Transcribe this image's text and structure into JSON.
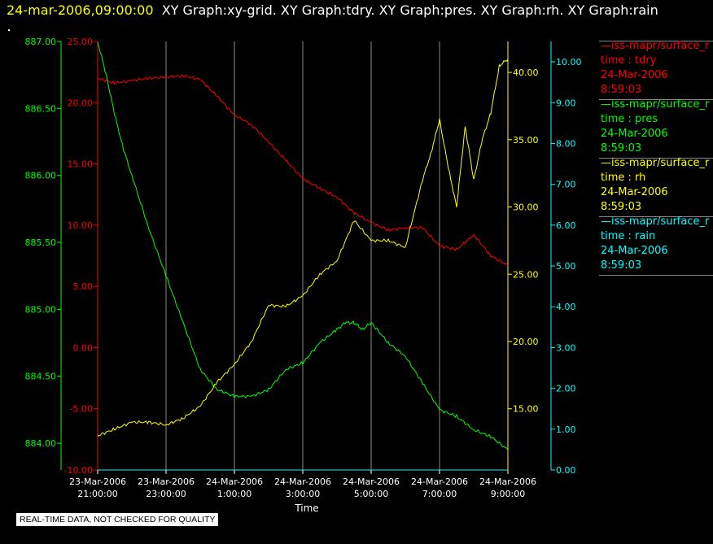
{
  "header": {
    "timestamp": "24-mar-2006,09:00:00",
    "graph_titles": "XY Graph:xy-grid.  XY Graph:tdry.  XY Graph:pres.  XY Graph:rh.  XY Graph:rain"
  },
  "footer": {
    "disclaimer": "REAL-TIME DATA, NOT CHECKED FOR QUALITY"
  },
  "legend": [
    {
      "name": "—iss-mapr/surface_r",
      "var": "time : tdry",
      "date": "24-Mar-2006",
      "time": "8:59:03",
      "color": "#ff0000"
    },
    {
      "name": "—iss-mapr/surface_r",
      "var": "time : pres",
      "date": "24-Mar-2006",
      "time": "8:59:03",
      "color": "#00ff00"
    },
    {
      "name": "—iss-mapr/surface_r",
      "var": "time : rh",
      "date": "24-Mar-2006",
      "time": "8:59:03",
      "color": "#ffff00"
    },
    {
      "name": "—iss-mapr/surface_r",
      "var": "time : rain",
      "date": "24-Mar-2006",
      "time": "8:59:03",
      "color": "#00ffff"
    }
  ],
  "chart_data": {
    "type": "line",
    "xlabel": "Time",
    "x_ticks": [
      {
        "line1": "23-Mar-2006",
        "line2": "21:00:00"
      },
      {
        "line1": "23-Mar-2006",
        "line2": "23:00:00"
      },
      {
        "line1": "24-Mar-2006",
        "line2": "1:00:00"
      },
      {
        "line1": "24-Mar-2006",
        "line2": "3:00:00"
      },
      {
        "line1": "24-Mar-2006",
        "line2": "5:00:00"
      },
      {
        "line1": "24-Mar-2006",
        "line2": "7:00:00"
      },
      {
        "line1": "24-Mar-2006",
        "line2": "9:00:00"
      }
    ],
    "xlim_hours": [
      21,
      33
    ],
    "grid": "vertical",
    "axes": {
      "pres": {
        "color": "#00ff00",
        "ylim": [
          883.8,
          887.0
        ],
        "ticks": [
          "887.00",
          "886.50",
          "886.00",
          "885.50",
          "885.00",
          "884.50",
          "884.00"
        ],
        "tick_values": [
          887.0,
          886.5,
          886.0,
          885.5,
          885.0,
          884.5,
          884.0
        ]
      },
      "tdry": {
        "color": "#ff0000",
        "ylim": [
          -10.0,
          25.0
        ],
        "ticks": [
          "25.00",
          "20.00",
          "15.00",
          "10.00",
          "5.00",
          "0.00",
          "-5.00",
          "-10.00"
        ],
        "tick_values": [
          25,
          20,
          15,
          10,
          5,
          0,
          -5,
          -10
        ]
      },
      "rh": {
        "color": "#ffff00",
        "ylim": [
          10.45,
          42.3
        ],
        "ticks": [
          "40.00",
          "35.00",
          "30.00",
          "25.00",
          "20.00",
          "15.00"
        ],
        "tick_values": [
          40,
          35,
          30,
          25,
          20,
          15
        ]
      },
      "rain": {
        "color": "#00ffff",
        "ylim": [
          0.0,
          10.5
        ],
        "ticks": [
          "10.00",
          "9.00",
          "8.00",
          "7.00",
          "6.00",
          "5.00",
          "4.00",
          "3.00",
          "2.00",
          "1.00",
          "0.00"
        ],
        "tick_values": [
          10,
          9,
          8,
          7,
          6,
          5,
          4,
          3,
          2,
          1,
          0
        ]
      }
    },
    "series": [
      {
        "name": "tdry",
        "axis": "tdry",
        "color": "#ff0000",
        "x": [
          21.0,
          21.5,
          22.0,
          22.5,
          23.0,
          23.5,
          24.0,
          24.5,
          25.0,
          25.5,
          26.0,
          26.5,
          27.0,
          27.5,
          28.0,
          28.5,
          29.0,
          29.5,
          30.0,
          30.5,
          31.0,
          31.5,
          32.0,
          32.5,
          33.0
        ],
        "y": [
          22.0,
          21.6,
          21.8,
          22.0,
          22.1,
          22.2,
          21.9,
          20.5,
          19.0,
          18.2,
          16.8,
          15.3,
          13.8,
          13.0,
          12.3,
          11.0,
          10.2,
          9.6,
          9.8,
          9.8,
          8.3,
          8.0,
          9.2,
          7.5,
          6.7
        ]
      },
      {
        "name": "pres",
        "axis": "pres",
        "color": "#00ff00",
        "x": [
          21.0,
          21.25,
          21.5,
          21.75,
          22.0,
          22.5,
          23.0,
          23.5,
          24.0,
          24.5,
          25.0,
          25.5,
          26.0,
          26.5,
          27.0,
          27.5,
          28.0,
          28.25,
          28.5,
          28.75,
          29.0,
          29.5,
          30.0,
          30.5,
          31.0,
          31.5,
          32.0,
          32.5,
          33.0
        ],
        "y": [
          887.0,
          886.75,
          886.45,
          886.2,
          886.0,
          885.6,
          885.25,
          884.9,
          884.55,
          884.4,
          884.35,
          884.35,
          884.4,
          884.55,
          884.6,
          884.75,
          884.85,
          884.9,
          884.9,
          884.85,
          884.9,
          884.75,
          884.65,
          884.45,
          884.25,
          884.2,
          884.1,
          884.05,
          883.95
        ]
      },
      {
        "name": "rh",
        "axis": "rh",
        "color": "#ffff00",
        "x": [
          21.0,
          21.5,
          22.0,
          22.5,
          23.0,
          23.5,
          24.0,
          24.5,
          25.0,
          25.5,
          26.0,
          26.5,
          27.0,
          27.5,
          28.0,
          28.5,
          29.0,
          29.5,
          30.0,
          30.5,
          30.75,
          31.0,
          31.25,
          31.5,
          31.75,
          32.0,
          32.25,
          32.5,
          32.75,
          33.0
        ],
        "y": [
          13.0,
          13.5,
          14.0,
          14.0,
          13.8,
          14.3,
          15.2,
          17.0,
          18.3,
          20.0,
          22.7,
          22.6,
          23.4,
          25.0,
          26.0,
          29.0,
          27.5,
          27.5,
          27.0,
          32.0,
          34.0,
          36.5,
          33.0,
          30.0,
          36.0,
          32.0,
          35.0,
          37.0,
          40.5,
          41.0
        ]
      },
      {
        "name": "rain",
        "axis": "rain",
        "color": "#00ffff",
        "x": [
          21.0,
          33.0
        ],
        "y": [
          0.0,
          0.0
        ]
      }
    ]
  }
}
